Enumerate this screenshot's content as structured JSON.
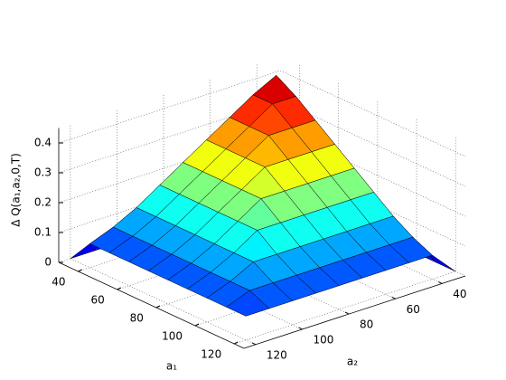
{
  "chart_data": {
    "type": "surface",
    "colormap": "jet",
    "xlabel": "a₁",
    "ylabel": "a₂",
    "zlabel": "Δ Q(a₁,a₂,0,T)",
    "x": [
      30,
      40,
      50,
      60,
      70,
      80,
      90,
      100,
      110,
      120
    ],
    "y": [
      30,
      40,
      50,
      60,
      70,
      80,
      90,
      100,
      110,
      120
    ],
    "z": [
      [
        0,
        0,
        0,
        0,
        0,
        0,
        0,
        0,
        0,
        0
      ],
      [
        0,
        0.44,
        0.4,
        0.35,
        0.3,
        0.25,
        0.2,
        0.15,
        0.11,
        0.08
      ],
      [
        0,
        0.4,
        0.4,
        0.35,
        0.3,
        0.25,
        0.2,
        0.15,
        0.11,
        0.08
      ],
      [
        0,
        0.35,
        0.35,
        0.35,
        0.3,
        0.25,
        0.2,
        0.15,
        0.11,
        0.08
      ],
      [
        0,
        0.3,
        0.3,
        0.3,
        0.3,
        0.25,
        0.2,
        0.15,
        0.11,
        0.08
      ],
      [
        0,
        0.25,
        0.25,
        0.25,
        0.25,
        0.25,
        0.2,
        0.15,
        0.11,
        0.08
      ],
      [
        0,
        0.2,
        0.2,
        0.2,
        0.2,
        0.2,
        0.2,
        0.15,
        0.11,
        0.08
      ],
      [
        0,
        0.15,
        0.15,
        0.15,
        0.15,
        0.15,
        0.15,
        0.15,
        0.11,
        0.08
      ],
      [
        0,
        0.11,
        0.11,
        0.11,
        0.11,
        0.11,
        0.11,
        0.11,
        0.11,
        0.08
      ],
      [
        0,
        0.08,
        0.08,
        0.08,
        0.08,
        0.08,
        0.08,
        0.08,
        0.08,
        0.08
      ]
    ],
    "xlim": [
      30,
      125
    ],
    "ylim": [
      30,
      125
    ],
    "zlim": [
      0,
      0.45
    ],
    "xticks": [
      40,
      60,
      80,
      100,
      120
    ],
    "yticks": [
      40,
      60,
      80,
      100,
      120
    ],
    "zticks": [
      0,
      0.1,
      0.2,
      0.3,
      0.4
    ],
    "grid": true
  }
}
